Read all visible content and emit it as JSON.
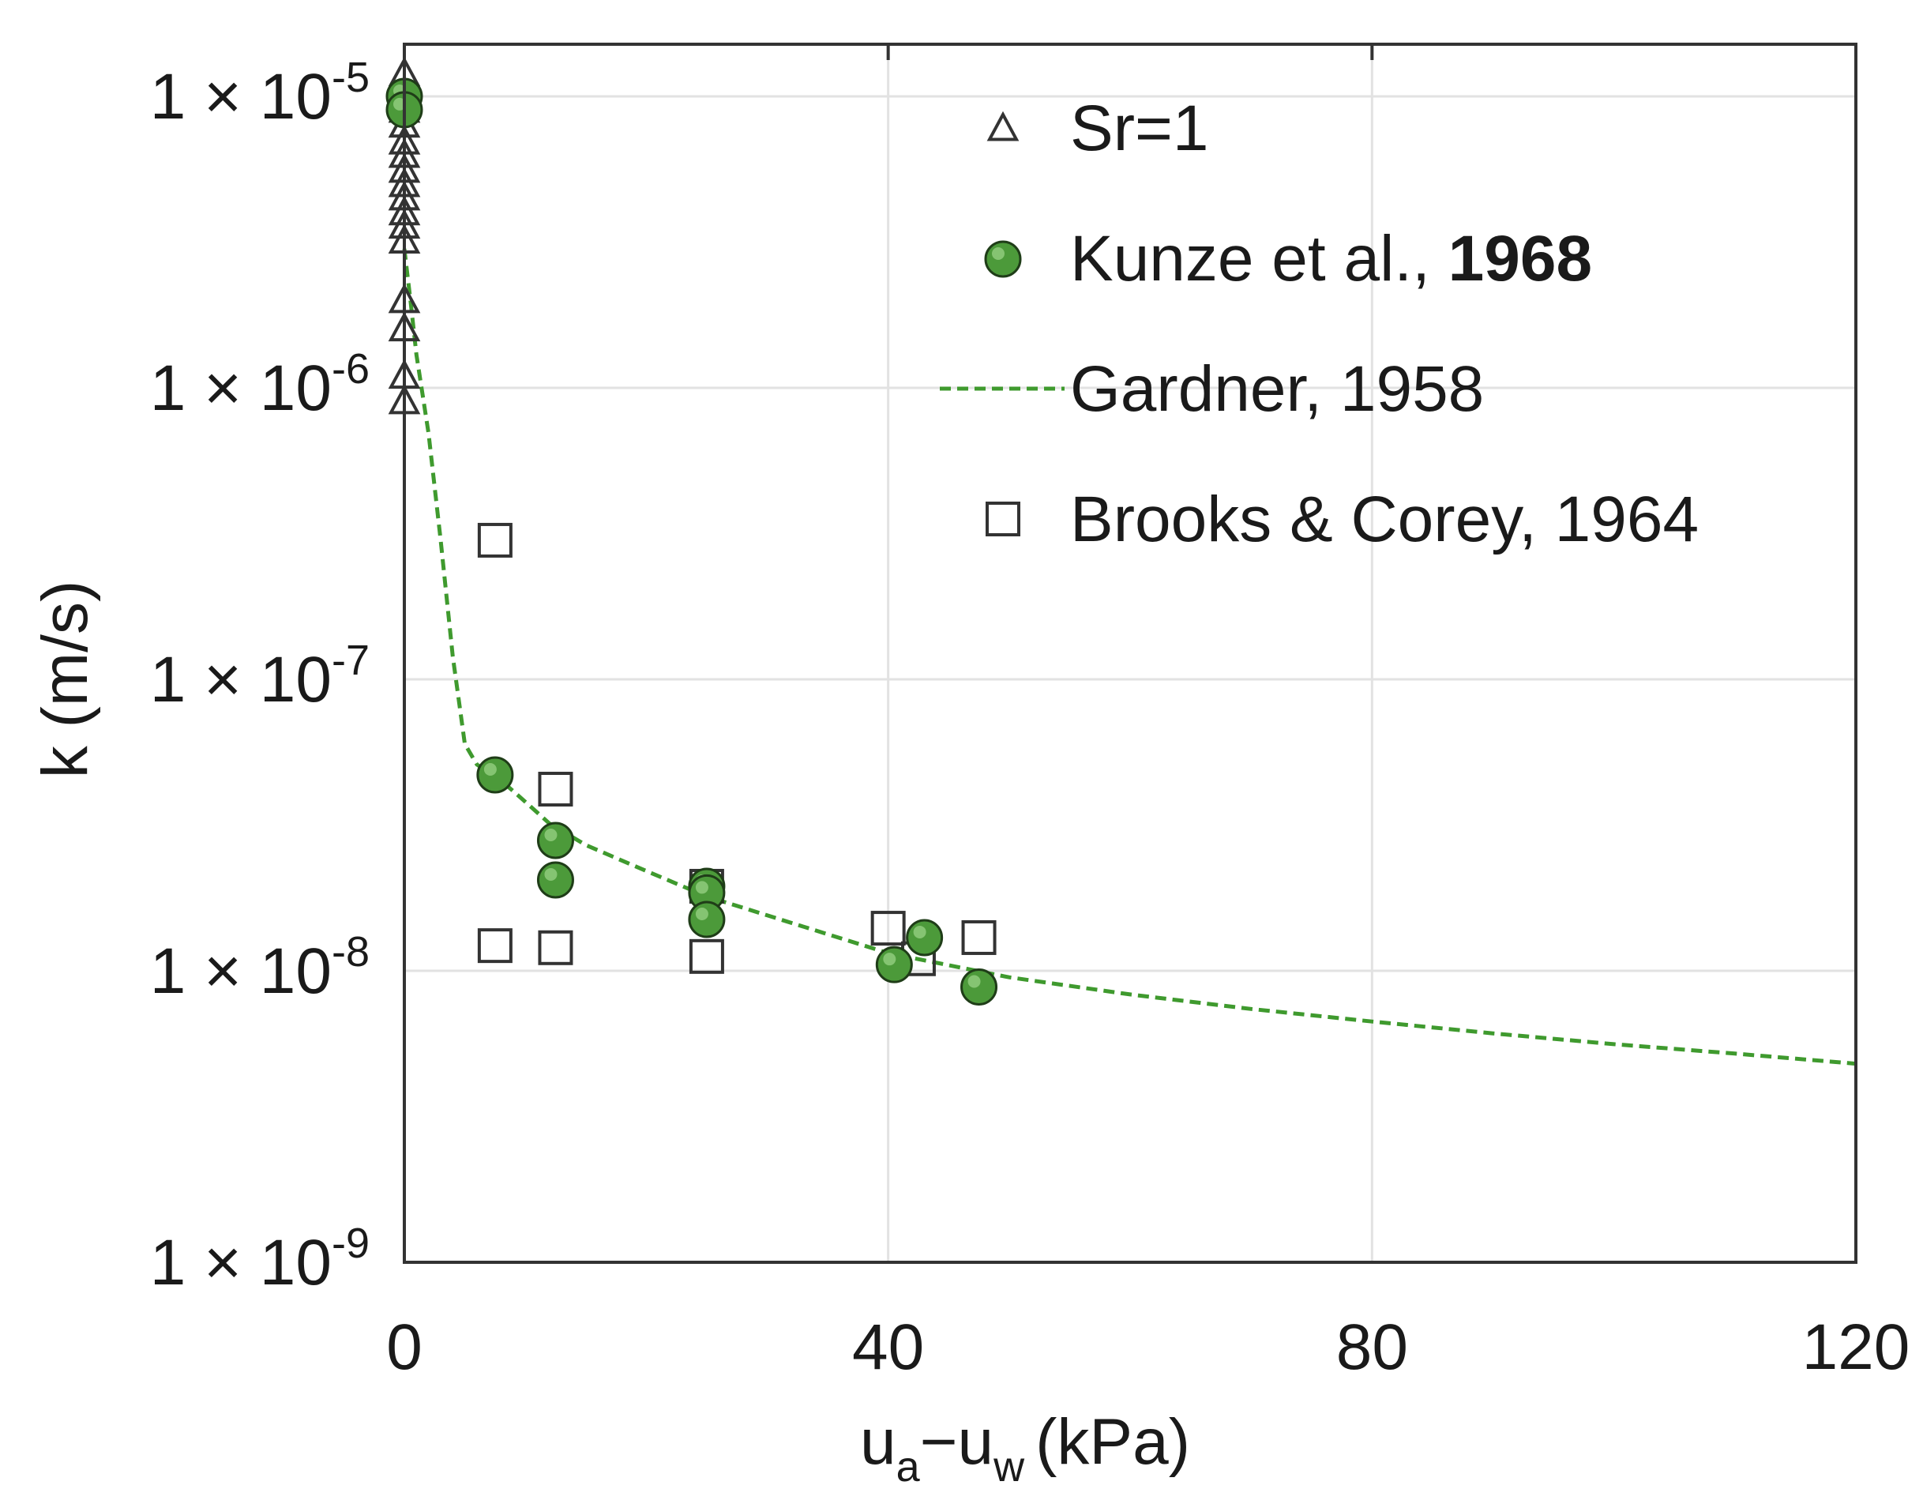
{
  "chart_data": {
    "type": "scatter",
    "title": "",
    "xlabel": {
      "u": "u",
      "sub_a": "a",
      "dash": "−",
      "sub_w": "w",
      "unit": "(kPa)"
    },
    "ylabel": "k (m/s)",
    "xlim": [
      0,
      120
    ],
    "ylim": [
      1e-09,
      1.4e-05
    ],
    "yscale": "log",
    "grid": true,
    "legend_position": "top-right",
    "x_ticks": [
      "0",
      "40",
      "80",
      "120"
    ],
    "y_ticks": [
      {
        "value": 1e-05,
        "mantissa": "1 × 10",
        "exponent": "-5"
      },
      {
        "value": 1e-06,
        "mantissa": "1 × 10",
        "exponent": "-6"
      },
      {
        "value": 1e-07,
        "mantissa": "1 × 10",
        "exponent": "-7"
      },
      {
        "value": 1e-08,
        "mantissa": "1 × 10",
        "exponent": "-8"
      },
      {
        "value": 1e-09,
        "mantissa": "1 × 10",
        "exponent": "-9"
      }
    ],
    "series": [
      {
        "name": "Sr=1",
        "marker": "triangle-open",
        "color": "#333333",
        "points": [
          [
            0,
            1.2e-05
          ],
          [
            0,
            1e-05
          ],
          [
            0,
            9e-06
          ],
          [
            0,
            8e-06
          ],
          [
            0,
            7e-06
          ],
          [
            0,
            6.3e-06
          ],
          [
            0,
            5.6e-06
          ],
          [
            0,
            5e-06
          ],
          [
            0,
            4.5e-06
          ],
          [
            0,
            4e-06
          ],
          [
            0,
            3.6e-06
          ],
          [
            0,
            3.2e-06
          ],
          [
            0,
            2e-06
          ],
          [
            0,
            1.6e-06
          ],
          [
            0,
            1.1e-06
          ],
          [
            0,
            9e-07
          ]
        ]
      },
      {
        "name_prefix": "Kunze et al., ",
        "name_bold": "1968",
        "marker": "circle-filled",
        "color": "#4c9a3a",
        "points": [
          [
            0,
            1e-05
          ],
          [
            0,
            9e-06
          ],
          [
            7.5,
            4.7e-08
          ],
          [
            12.5,
            2.8e-08
          ],
          [
            12.5,
            2.05e-08
          ],
          [
            25,
            1.95e-08
          ],
          [
            25,
            1.85e-08
          ],
          [
            25,
            1.5e-08
          ],
          [
            40.5,
            1.05e-08
          ],
          [
            43,
            1.3e-08
          ],
          [
            47.5,
            8.8e-09
          ]
        ]
      },
      {
        "name": "Gardner, 1958",
        "marker": "line-dashed",
        "color": "#3f9a2e",
        "points": [
          [
            0,
            3e-06
          ],
          [
            0.5,
            2e-06
          ],
          [
            1,
            1.3e-06
          ],
          [
            2,
            7e-07
          ],
          [
            3,
            3e-07
          ],
          [
            4,
            1.2e-07
          ],
          [
            5,
            6e-08
          ],
          [
            6,
            5.1e-08
          ],
          [
            8,
            4.5e-08
          ],
          [
            10,
            3.8e-08
          ],
          [
            12,
            3.2e-08
          ],
          [
            15,
            2.7e-08
          ],
          [
            20,
            2.2e-08
          ],
          [
            25,
            1.8e-08
          ],
          [
            30,
            1.55e-08
          ],
          [
            40,
            1.15e-08
          ],
          [
            50,
            9.5e-09
          ],
          [
            60,
            8.3e-09
          ],
          [
            70,
            7.4e-09
          ],
          [
            80,
            6.7e-09
          ],
          [
            90,
            6.1e-09
          ],
          [
            100,
            5.6e-09
          ],
          [
            110,
            5.2e-09
          ],
          [
            120,
            4.8e-09
          ]
        ]
      },
      {
        "name": "Brooks & Corey, 1964",
        "marker": "square-open",
        "color": "#333333",
        "points": [
          [
            7.5,
            3e-07
          ],
          [
            7.5,
            1.22e-08
          ],
          [
            12.5,
            4.2e-08
          ],
          [
            12.5,
            1.2e-08
          ],
          [
            25,
            1.95e-08
          ],
          [
            25,
            1.12e-08
          ],
          [
            40,
            1.4e-08
          ],
          [
            42.5,
            1.1e-08
          ],
          [
            47.5,
            1.3e-08
          ]
        ]
      }
    ]
  }
}
